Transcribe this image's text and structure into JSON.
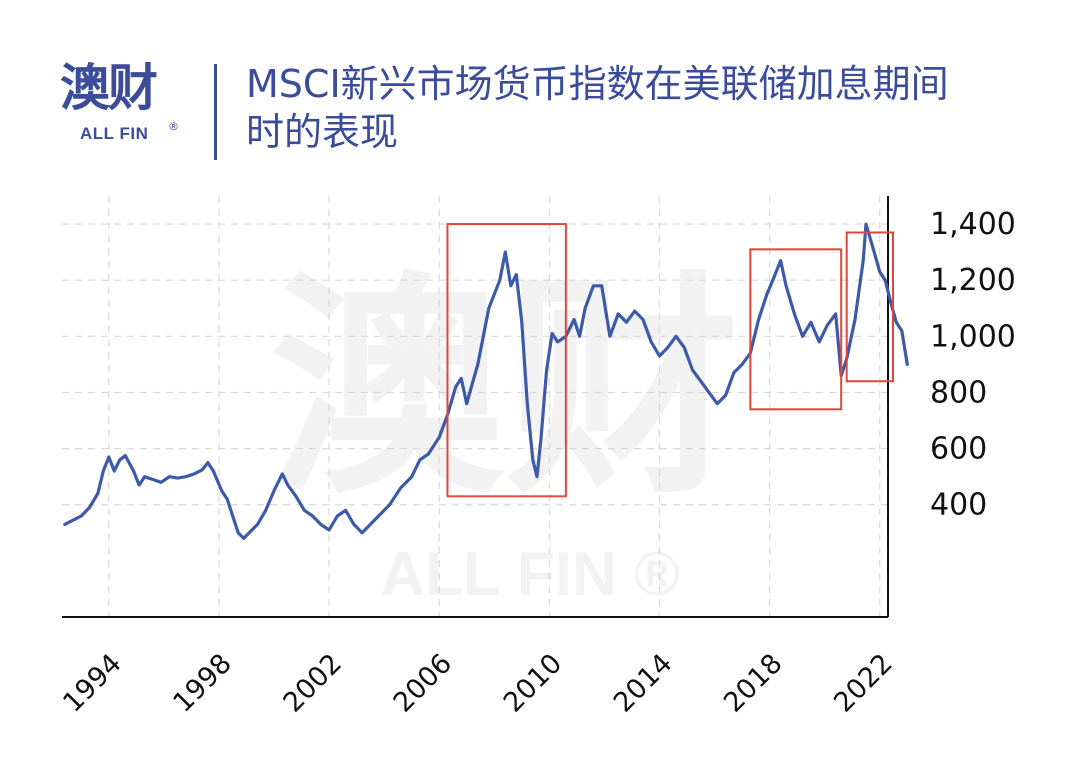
{
  "brand": {
    "name_cn": "澳财",
    "name_en": "ALL FIN",
    "registered_mark": "®"
  },
  "title": "MSCI新兴市场货币指数在美联储加息期间时的表现",
  "watermark": {
    "text_cn": "澳财",
    "text_en": "ALL FIN ®"
  },
  "colors": {
    "brand": "#3a4c9a",
    "line": "#3d5aa8",
    "highlight_box": "#e0463a",
    "grid": "#d9d9d9"
  },
  "chart_data": {
    "type": "line",
    "title": "MSCI新兴市场货币指数在美联储加息期间时的表现",
    "xlabel": "",
    "ylabel": "",
    "x_ticks": [
      "1994",
      "1998",
      "2002",
      "2006",
      "2010",
      "2014",
      "2018",
      "2022"
    ],
    "y_ticks": [
      "1,400",
      "1,200",
      "1,000",
      "800",
      "600",
      "400"
    ],
    "y_tick_values": [
      1400,
      1200,
      1000,
      800,
      600,
      400
    ],
    "xlim": [
      1992.0,
      2022.0
    ],
    "ylim": [
      0,
      1500
    ],
    "grid": true,
    "y_axis_position": "right",
    "series": [
      {
        "values": [
          [
            1992.1,
            330
          ],
          [
            1992.4,
            345
          ],
          [
            1992.7,
            360
          ],
          [
            1993.0,
            390
          ],
          [
            1993.3,
            440
          ],
          [
            1993.5,
            520
          ],
          [
            1993.7,
            570
          ],
          [
            1993.9,
            520
          ],
          [
            1994.1,
            560
          ],
          [
            1994.3,
            575
          ],
          [
            1994.6,
            520
          ],
          [
            1994.8,
            470
          ],
          [
            1995.0,
            500
          ],
          [
            1995.3,
            490
          ],
          [
            1995.6,
            480
          ],
          [
            1995.9,
            500
          ],
          [
            1996.2,
            495
          ],
          [
            1996.5,
            500
          ],
          [
            1996.8,
            510
          ],
          [
            1997.1,
            525
          ],
          [
            1997.3,
            550
          ],
          [
            1997.5,
            520
          ],
          [
            1997.8,
            450
          ],
          [
            1998.0,
            420
          ],
          [
            1998.2,
            360
          ],
          [
            1998.4,
            300
          ],
          [
            1998.6,
            280
          ],
          [
            1998.8,
            300
          ],
          [
            1999.1,
            330
          ],
          [
            1999.4,
            380
          ],
          [
            1999.7,
            450
          ],
          [
            2000.0,
            510
          ],
          [
            2000.2,
            470
          ],
          [
            2000.5,
            430
          ],
          [
            2000.8,
            380
          ],
          [
            2001.1,
            360
          ],
          [
            2001.4,
            330
          ],
          [
            2001.7,
            310
          ],
          [
            2002.0,
            360
          ],
          [
            2002.3,
            380
          ],
          [
            2002.6,
            330
          ],
          [
            2002.9,
            300
          ],
          [
            2003.2,
            330
          ],
          [
            2003.5,
            360
          ],
          [
            2003.9,
            400
          ],
          [
            2004.3,
            460
          ],
          [
            2004.7,
            500
          ],
          [
            2005.0,
            560
          ],
          [
            2005.3,
            580
          ],
          [
            2005.7,
            640
          ],
          [
            2006.0,
            720
          ],
          [
            2006.3,
            820
          ],
          [
            2006.5,
            850
          ],
          [
            2006.7,
            760
          ],
          [
            2006.9,
            830
          ],
          [
            2007.1,
            900
          ],
          [
            2007.3,
            1000
          ],
          [
            2007.5,
            1100
          ],
          [
            2007.7,
            1150
          ],
          [
            2007.9,
            1200
          ],
          [
            2008.1,
            1300
          ],
          [
            2008.3,
            1180
          ],
          [
            2008.5,
            1220
          ],
          [
            2008.7,
            1050
          ],
          [
            2008.9,
            760
          ],
          [
            2009.1,
            560
          ],
          [
            2009.25,
            500
          ],
          [
            2009.4,
            640
          ],
          [
            2009.6,
            880
          ],
          [
            2009.8,
            1010
          ],
          [
            2010.0,
            980
          ],
          [
            2010.3,
            1000
          ],
          [
            2010.6,
            1060
          ],
          [
            2010.8,
            1000
          ],
          [
            2011.0,
            1100
          ],
          [
            2011.3,
            1180
          ],
          [
            2011.6,
            1180
          ],
          [
            2011.9,
            1000
          ],
          [
            2012.2,
            1080
          ],
          [
            2012.5,
            1050
          ],
          [
            2012.8,
            1090
          ],
          [
            2013.1,
            1060
          ],
          [
            2013.4,
            980
          ],
          [
            2013.7,
            930
          ],
          [
            2014.0,
            960
          ],
          [
            2014.3,
            1000
          ],
          [
            2014.6,
            960
          ],
          [
            2014.9,
            880
          ],
          [
            2015.2,
            840
          ],
          [
            2015.5,
            800
          ],
          [
            2015.8,
            760
          ],
          [
            2016.1,
            790
          ],
          [
            2016.4,
            870
          ],
          [
            2016.7,
            900
          ],
          [
            2017.0,
            940
          ],
          [
            2017.3,
            1060
          ],
          [
            2017.6,
            1150
          ],
          [
            2017.9,
            1220
          ],
          [
            2018.1,
            1270
          ],
          [
            2018.3,
            1180
          ],
          [
            2018.6,
            1080
          ],
          [
            2018.9,
            1000
          ],
          [
            2019.2,
            1050
          ],
          [
            2019.5,
            980
          ],
          [
            2019.8,
            1040
          ],
          [
            2020.1,
            1080
          ],
          [
            2020.3,
            860
          ],
          [
            2020.5,
            920
          ],
          [
            2020.8,
            1060
          ],
          [
            2021.1,
            1270
          ],
          [
            2021.2,
            1400
          ],
          [
            2021.35,
            1350
          ],
          [
            2021.5,
            1300
          ],
          [
            2021.7,
            1230
          ],
          [
            2021.9,
            1200
          ],
          [
            2022.1,
            1120
          ],
          [
            2022.3,
            1050
          ],
          [
            2022.5,
            1020
          ],
          [
            2022.7,
            900
          ]
        ]
      }
    ],
    "highlight_boxes": [
      {
        "x0": 2006.0,
        "x1": 2010.3,
        "y0": 430,
        "y1": 1400
      },
      {
        "x0": 2017.0,
        "x1": 2020.3,
        "y0": 740,
        "y1": 1310
      },
      {
        "x0": 2020.5,
        "x1": 2023.0,
        "y0": 840,
        "y1": 1370
      }
    ]
  }
}
